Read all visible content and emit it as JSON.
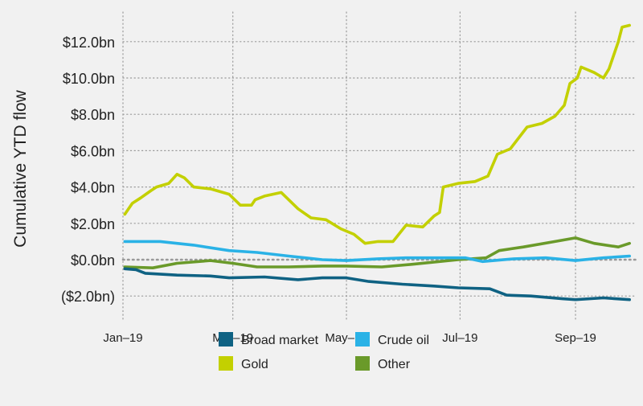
{
  "chart_data": {
    "type": "line",
    "title": "",
    "xlabel": "",
    "ylabel": "Cumulative YTD flow",
    "x_unit": "day of year 2019",
    "xlim": [
      0,
      272
    ],
    "ylim": [
      -3.2,
      13.8
    ],
    "grid": true,
    "legend_placement": "bottom",
    "x_ticks": [
      {
        "day": 0,
        "label": "Jan–19"
      },
      {
        "day": 59,
        "label": "Mar–19"
      },
      {
        "day": 120,
        "label": "May–19"
      },
      {
        "day": 181,
        "label": "Jul–19"
      },
      {
        "day": 243,
        "label": "Sep–19"
      }
    ],
    "y_ticks": [
      {
        "value": 12,
        "label": "$12.0bn"
      },
      {
        "value": 10,
        "label": "$10.0bn"
      },
      {
        "value": 8,
        "label": "$8.0bn"
      },
      {
        "value": 6,
        "label": "$6.0bn"
      },
      {
        "value": 4,
        "label": "$4.0bn"
      },
      {
        "value": 2,
        "label": "$2.0bn"
      },
      {
        "value": 0,
        "label": "$0.0bn"
      },
      {
        "value": -2,
        "label": "($2.0bn)"
      }
    ],
    "series": [
      {
        "name": "Broad market",
        "color": "#0f6283",
        "x": [
          1,
          7,
          12,
          29,
          47,
          57,
          76,
          94,
          107,
          120,
          132,
          150,
          167,
          180,
          197,
          206,
          219,
          236,
          243,
          258,
          272
        ],
        "values": [
          -0.5,
          -0.55,
          -0.75,
          -0.85,
          -0.9,
          -1.0,
          -0.95,
          -1.1,
          -1.0,
          -1.0,
          -1.2,
          -1.35,
          -1.45,
          -1.55,
          -1.6,
          -1.95,
          -2.0,
          -2.15,
          -2.2,
          -2.1,
          -2.2
        ]
      },
      {
        "name": "Crude oil",
        "color": "#2ab2e6",
        "x": [
          1,
          20,
          38,
          57,
          72,
          89,
          107,
          120,
          137,
          152,
          171,
          184,
          193,
          210,
          227,
          243,
          258,
          272
        ],
        "values": [
          1.0,
          1.0,
          0.8,
          0.5,
          0.4,
          0.2,
          0.0,
          -0.05,
          0.05,
          0.1,
          0.1,
          0.1,
          -0.1,
          0.05,
          0.1,
          -0.05,
          0.1,
          0.2
        ]
      },
      {
        "name": "Gold",
        "color": "#c3d000",
        "x": [
          1,
          5,
          9.5,
          15,
          18,
          24.6,
          29,
          33,
          38,
          47,
          57,
          63,
          69,
          71,
          76,
          85,
          94,
          101,
          109,
          117,
          124,
          130,
          137,
          145,
          152,
          161,
          167,
          170,
          172,
          180,
          189,
          196,
          201,
          208,
          217,
          225,
          232,
          237,
          240,
          244,
          246,
          253,
          258,
          261,
          266,
          268,
          272
        ],
        "values": [
          2.5,
          3.1,
          3.4,
          3.8,
          4.0,
          4.2,
          4.7,
          4.5,
          4.0,
          3.9,
          3.6,
          3.0,
          3.0,
          3.3,
          3.5,
          3.7,
          2.8,
          2.3,
          2.2,
          1.7,
          1.4,
          0.9,
          1.0,
          1.0,
          1.9,
          1.8,
          2.4,
          2.6,
          4.0,
          4.2,
          4.3,
          4.6,
          5.8,
          6.1,
          7.3,
          7.5,
          7.9,
          8.5,
          9.7,
          10.0,
          10.6,
          10.3,
          10.0,
          10.5,
          12.0,
          12.8,
          12.9
        ]
      },
      {
        "name": "Other",
        "color": "#6a9a2a",
        "x": [
          1,
          16,
          29,
          47,
          59,
          72,
          89,
          107,
          120,
          139,
          156,
          180,
          195,
          202,
          215,
          232,
          243,
          253,
          266,
          272
        ],
        "values": [
          -0.4,
          -0.45,
          -0.2,
          -0.05,
          -0.2,
          -0.4,
          -0.4,
          -0.35,
          -0.35,
          -0.4,
          -0.25,
          0.0,
          0.1,
          0.5,
          0.7,
          1.0,
          1.2,
          0.9,
          0.7,
          0.9
        ]
      }
    ],
    "legend": [
      "Broad market",
      "Crude oil",
      "Gold",
      "Other"
    ]
  }
}
